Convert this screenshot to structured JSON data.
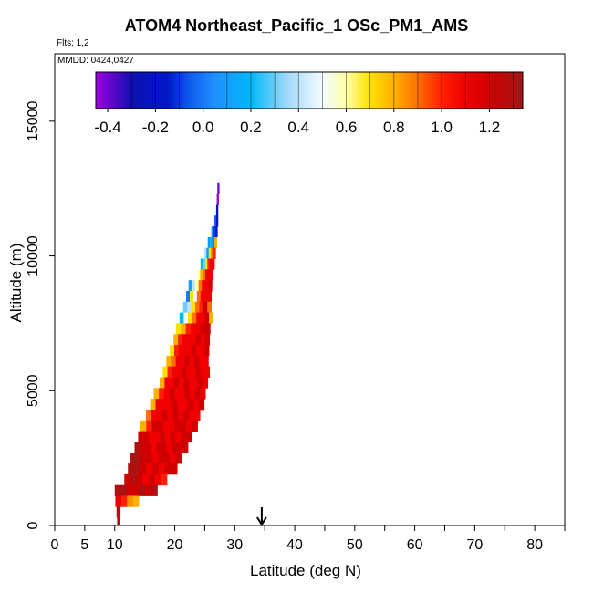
{
  "header": {
    "title": "ATOM4 Northeast_Pacific_1 OSc_PM1_AMS",
    "flights": "Flts: 1,2",
    "dates": "MMDD: 0424,0427"
  },
  "colors": {
    "background": "#ffffff",
    "axis": "#000000",
    "marker": "#000000"
  },
  "chart_data": {
    "type": "heatmap",
    "title": "ATOM4 Northeast_Pacific_1 OSc_PM1_AMS",
    "xlabel": "Latitude (deg N)",
    "ylabel": "Altitude (m)",
    "xlim": [
      0,
      85
    ],
    "ylim": [
      0,
      17500
    ],
    "x_ticks": [
      0,
      5,
      10,
      20,
      30,
      40,
      50,
      60,
      70,
      80
    ],
    "x_minor_ticks": [
      15,
      25,
      35,
      45,
      55,
      65,
      75,
      85
    ],
    "y_ticks": [
      0,
      5000,
      10000,
      15000
    ],
    "marker_latitude": 34.5,
    "colorbar": {
      "ticks": [
        -0.4,
        -0.2,
        0.0,
        0.2,
        0.4,
        0.6,
        0.8,
        1.0,
        1.2
      ],
      "tick_labels": [
        "-0.4",
        "-0.2",
        "0.0",
        "0.2",
        "0.4",
        "0.6",
        "0.8",
        "1.0",
        "1.2"
      ],
      "range": [
        -0.45,
        1.34
      ],
      "stops": [
        {
          "v": -0.45,
          "c": "#a000e0"
        },
        {
          "v": -0.3,
          "c": "#1010b0"
        },
        {
          "v": -0.15,
          "c": "#0018c8"
        },
        {
          "v": -0.05,
          "c": "#1060f0"
        },
        {
          "v": 0.05,
          "c": "#2090ff"
        },
        {
          "v": 0.2,
          "c": "#00b8f8"
        },
        {
          "v": 0.35,
          "c": "#a0d8f8"
        },
        {
          "v": 0.5,
          "c": "#f4fbff"
        },
        {
          "v": 0.6,
          "c": "#ffffa8"
        },
        {
          "v": 0.7,
          "c": "#ffe000"
        },
        {
          "v": 0.8,
          "c": "#ffb000"
        },
        {
          "v": 0.9,
          "c": "#ff7000"
        },
        {
          "v": 1.0,
          "c": "#ff2000"
        },
        {
          "v": 1.1,
          "c": "#f00000"
        },
        {
          "v": 1.2,
          "c": "#d00000"
        },
        {
          "v": 1.34,
          "c": "#a01818"
        }
      ]
    },
    "rows": [
      {
        "alt": 12300,
        "x0": 27.1,
        "x1": 27.4,
        "vals": [
          -0.4
        ]
      },
      {
        "alt": 11900,
        "x0": 27.0,
        "x1": 27.3,
        "vals": [
          -0.45
        ]
      },
      {
        "alt": 11500,
        "x0": 26.9,
        "x1": 27.2,
        "vals": [
          -0.2
        ]
      },
      {
        "alt": 11100,
        "x0": 26.6,
        "x1": 27.2,
        "vals": [
          -0.05,
          -0.2
        ]
      },
      {
        "alt": 10700,
        "x0": 26.1,
        "x1": 27.1,
        "vals": [
          0.05,
          -0.1,
          -0.2
        ]
      },
      {
        "alt": 10300,
        "x0": 25.5,
        "x1": 27.0,
        "vals": [
          0.05,
          0.2,
          0.0,
          0.8
        ]
      },
      {
        "alt": 9900,
        "x0": 24.9,
        "x1": 26.8,
        "vals": [
          0.4,
          0.1,
          0.7,
          0.9,
          1.0
        ]
      },
      {
        "alt": 9500,
        "x0": 24.3,
        "x1": 26.6,
        "vals": [
          0.2,
          0.3,
          0.7,
          1.0,
          1.1,
          1.1
        ]
      },
      {
        "alt": 9100,
        "x0": 23.8,
        "x1": 26.4,
        "vals": [
          0.6,
          0.8,
          0.9,
          1.1,
          1.1,
          1.1
        ]
      },
      {
        "alt": 8700,
        "x0": 22.3,
        "x1": 26.2,
        "vals": [
          0.1,
          0.4,
          0.6,
          0.9,
          1.1,
          1.1,
          1.2
        ]
      },
      {
        "alt": 8300,
        "x0": 21.9,
        "x1": 26.1,
        "vals": [
          0.0,
          0.7,
          0.5,
          0.9,
          1.1,
          1.1,
          1.1
        ]
      },
      {
        "alt": 7900,
        "x0": 21.4,
        "x1": 26.1,
        "vals": [
          0.3,
          0.4,
          0.7,
          0.9,
          1.0,
          1.2,
          0.9
        ]
      },
      {
        "alt": 7500,
        "x0": 20.8,
        "x1": 26.4,
        "vals": [
          0.2,
          0.5,
          0.7,
          0.9,
          1.1,
          1.1,
          1.2,
          0.8
        ]
      },
      {
        "alt": 7100,
        "x0": 20.2,
        "x1": 25.9,
        "vals": [
          0.7,
          0.8,
          1.0,
          1.1,
          1.1,
          1.2,
          1.2
        ]
      },
      {
        "alt": 6700,
        "x0": 19.8,
        "x1": 25.8,
        "vals": [
          0.8,
          1.0,
          1.1,
          1.1,
          1.1,
          1.2,
          1.1,
          1.2
        ]
      },
      {
        "alt": 6300,
        "x0": 19.2,
        "x1": 25.7,
        "vals": [
          0.7,
          1.0,
          1.1,
          1.1,
          1.1,
          1.2,
          1.1,
          1.1,
          1.2
        ]
      },
      {
        "alt": 5900,
        "x0": 18.6,
        "x1": 25.6,
        "vals": [
          0.8,
          0.9,
          1.1,
          1.1,
          1.2,
          1.1,
          1.2,
          1.1,
          1.1
        ]
      },
      {
        "alt": 5500,
        "x0": 18.0,
        "x1": 25.8,
        "vals": [
          0.7,
          1.0,
          1.1,
          1.1,
          1.2,
          1.1,
          1.1,
          1.2,
          1.1,
          1.1
        ]
      },
      {
        "alt": 5100,
        "x0": 17.5,
        "x1": 25.5,
        "vals": [
          0.8,
          1.1,
          1.1,
          1.2,
          1.1,
          1.2,
          1.1,
          1.1,
          1.2,
          1.1
        ]
      },
      {
        "alt": 4700,
        "x0": 16.5,
        "x1": 25.1,
        "vals": [
          0.8,
          1.0,
          1.1,
          1.2,
          1.1,
          1.1,
          1.2,
          1.1,
          1.2,
          1.1
        ]
      },
      {
        "alt": 4300,
        "x0": 15.9,
        "x1": 24.9,
        "vals": [
          0.8,
          1.1,
          1.1,
          1.1,
          1.2,
          1.1,
          1.1,
          1.2,
          1.1,
          1.2
        ]
      },
      {
        "alt": 3900,
        "x0": 15.2,
        "x1": 24.2,
        "vals": [
          0.9,
          1.1,
          1.1,
          1.2,
          1.1,
          1.2,
          1.1,
          1.2,
          1.1,
          1.1
        ]
      },
      {
        "alt": 3500,
        "x0": 14.3,
        "x1": 23.8,
        "vals": [
          0.8,
          1.0,
          1.2,
          1.2,
          1.1,
          1.1,
          1.2,
          1.2,
          1.1,
          1.2
        ]
      },
      {
        "alt": 3100,
        "x0": 13.9,
        "x1": 22.8,
        "vals": [
          1.2,
          1.2,
          1.1,
          1.1,
          1.2,
          1.1,
          1.2,
          1.1,
          1.2,
          1.2
        ]
      },
      {
        "alt": 2700,
        "x0": 13.3,
        "x1": 22.2,
        "vals": [
          1.3,
          1.2,
          1.2,
          1.1,
          1.2,
          1.2,
          1.1,
          1.2,
          1.2,
          1.2
        ]
      },
      {
        "alt": 2300,
        "x0": 12.5,
        "x1": 21.1,
        "vals": [
          1.3,
          1.3,
          1.2,
          1.2,
          1.1,
          1.2,
          1.2,
          1.1,
          1.2
        ]
      },
      {
        "alt": 1900,
        "x0": 12.2,
        "x1": 20.4,
        "vals": [
          1.3,
          1.3,
          1.2,
          1.1,
          1.2,
          1.1,
          1.2,
          1.2
        ]
      },
      {
        "alt": 1500,
        "x0": 11.6,
        "x1": 18.7,
        "vals": [
          1.2,
          1.3,
          1.2,
          1.1,
          1.2,
          1.1,
          1.0
        ]
      },
      {
        "alt": 1100,
        "x0": 10.0,
        "x1": 17.1,
        "vals": [
          1.3,
          1.3,
          1.2,
          1.2,
          1.3,
          1.2,
          1.3
        ]
      },
      {
        "alt": 700,
        "x0": 10.1,
        "x1": 14.0,
        "vals": [
          1.1,
          1.0,
          0.85,
          0.8
        ]
      },
      {
        "alt": 300,
        "x0": 10.3,
        "x1": 10.9,
        "vals": [
          1.3
        ]
      },
      {
        "alt": 0,
        "x0": 10.4,
        "x1": 10.8,
        "vals": [
          1.25
        ]
      }
    ]
  }
}
